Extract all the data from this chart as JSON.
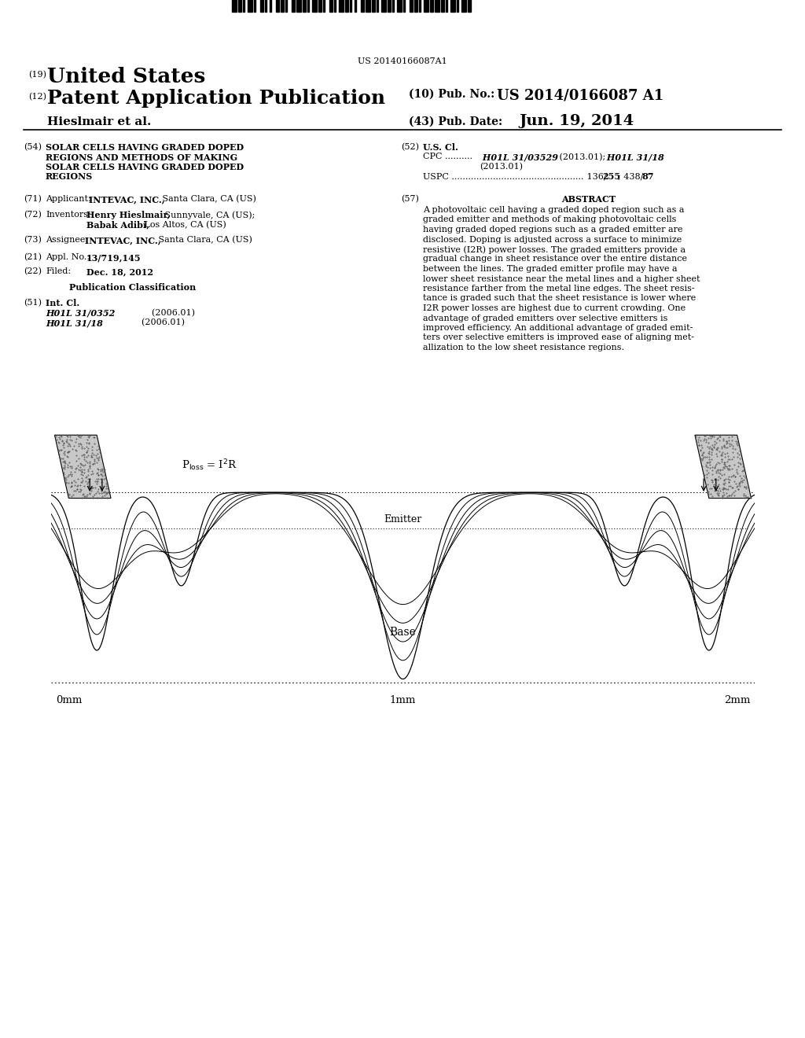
{
  "bg_color": "#ffffff",
  "barcode_text": "US 20140166087A1",
  "pub_no": "US 2014/0166087 A1",
  "pub_date": "Jun. 19, 2014",
  "abstract_text": "A photovoltaic cell having a graded doped region such as a\ngraded emitter and methods of making photovoltaic cells\nhaving graded doped regions such as a graded emitter are\ndisclosed. Doping is adjusted across a surface to minimize\nresistive (I2R) power losses. The graded emitters provide a\ngradual change in sheet resistance over the entire distance\nbetween the lines. The graded emitter profile may have a\nlower sheet resistance near the metal lines and a higher sheet\nresistance farther from the metal line edges. The sheet resis-\ntance is graded such that the sheet resistance is lower where\nI2R power losses are highest due to current crowding. One\nadvantage of graded emitters over selective emitters is\nimproved efficiency. An additional advantage of graded emit-\nters over selective emitters is improved ease of aligning met-\nallization to the low sheet resistance regions."
}
